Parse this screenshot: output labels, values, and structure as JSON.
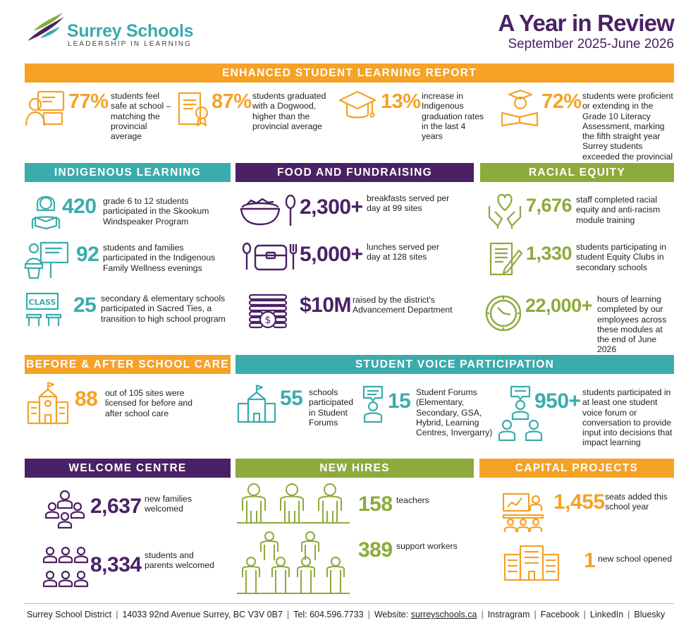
{
  "brand": {
    "name": "Surrey Schools",
    "tagline": "LEADERSHIP IN LEARNING",
    "colors": {
      "orange": "#f5a227",
      "teal": "#3aacad",
      "purple": "#4b2165",
      "green": "#8daa3c"
    }
  },
  "header": {
    "title": "A Year in Review",
    "subtitle": "September 2025-June 2026"
  },
  "learning": {
    "heading": "ENHANCED STUDENT LEARNING REPORT",
    "stats": [
      {
        "value": "77%",
        "text": "students feel safe at school – matching the provincial average",
        "icon": "student-laptop-icon"
      },
      {
        "value": "87%",
        "text": "students graduated with a Dogwood, higher than the provincial average",
        "icon": "diploma-icon"
      },
      {
        "value": "13%",
        "text": "increase in Indigenous graduation rates in the last 4 years",
        "icon": "graduation-cap-icon"
      },
      {
        "value": "72%",
        "text": "students were proficient or extending in the Grade 10 Literacy Assessment, marking the fifth straight year Surrey students exceeded the provincial average",
        "icon": "reading-student-icon"
      }
    ]
  },
  "indigenous": {
    "heading": "INDIGENOUS LEARNING",
    "stats": [
      {
        "value": "420",
        "text": "grade 6 to 12 students participated in the Skookum Windspeaker Program",
        "icon": "student-reading-icon"
      },
      {
        "value": "92",
        "text": "students and families participated in the Indigenous Family Wellness evenings",
        "icon": "presenter-icon"
      },
      {
        "value": "25",
        "text": "secondary & elementary schools participated in Sacred Ties, a transition to high school program",
        "icon": "classroom-icon",
        "icon_label": "CLASS"
      }
    ]
  },
  "food": {
    "heading": "FOOD AND FUNDRAISING",
    "stats": [
      {
        "value": "2,300+",
        "text": "breakfasts served per day at 99 sites",
        "icon": "bowl-spoon-icon"
      },
      {
        "value": "5,000+",
        "text": "lunches served per day at 128 sites",
        "icon": "lunchbox-icon"
      },
      {
        "value": "$10M",
        "text": "raised by the district's Advancement Department",
        "icon": "coins-icon"
      }
    ]
  },
  "equity": {
    "heading": "RACIAL EQUITY",
    "stats": [
      {
        "value": "7,676",
        "text": "staff completed racial equity and anti-racism module training",
        "icon": "heart-hands-icon"
      },
      {
        "value": "1,330",
        "text": "students participating in student Equity Clubs in secondary schools",
        "icon": "document-pen-icon"
      },
      {
        "value": "22,000+",
        "text": "hours of learning completed by our employees across these modules at the end of June 2026",
        "icon": "clock-icon"
      }
    ]
  },
  "care": {
    "heading": "BEFORE & AFTER SCHOOL CARE",
    "value": "88",
    "text": "out of 105 sites were licensed for before and after school care",
    "icon": "school-building-icon"
  },
  "voice": {
    "heading": "STUDENT VOICE PARTICIPATION",
    "stats": [
      {
        "value": "55",
        "text": "schools participated in Student Forums",
        "icon": "school-icon"
      },
      {
        "value": "15",
        "text": "Student Forums (Elementary, Secondary, GSA, Hybrid, Learning Centres, Invergarry)",
        "icon": "speaker-icon"
      },
      {
        "value": "950+",
        "text": "students participated in at least one student voice forum or conversation to provide input into decisions that impact learning",
        "icon": "group-speech-icon"
      }
    ]
  },
  "welcome": {
    "heading": "WELCOME CENTRE",
    "stats": [
      {
        "value": "2,637",
        "text": "new families welcomed",
        "icon": "family-group-icon"
      },
      {
        "value": "8,334",
        "text": "students and parents welcomed",
        "icon": "people-grid-icon"
      }
    ]
  },
  "hires": {
    "heading": "NEW HIRES",
    "stats": [
      {
        "value": "158",
        "text": "teachers",
        "icon": "teachers-icon"
      },
      {
        "value": "389",
        "text": "support workers",
        "icon": "workers-icon"
      }
    ]
  },
  "capital": {
    "heading": "CAPITAL PROJECTS",
    "stats": [
      {
        "value": "1,455",
        "text": "seats added this school year",
        "icon": "classroom-seats-icon"
      },
      {
        "value": "1",
        "text": "new school opened",
        "icon": "new-school-icon"
      }
    ]
  },
  "footer": {
    "org": "Surrey School District",
    "address": "14033 92nd Avenue Surrey, BC  V3V 0B7",
    "phone": "Tel: 604.596.7733",
    "website_label": "Website: ",
    "website": "surreyschools.ca",
    "social": [
      "Instragram",
      "Facebook",
      "LinkedIn",
      "Bluesky"
    ]
  }
}
